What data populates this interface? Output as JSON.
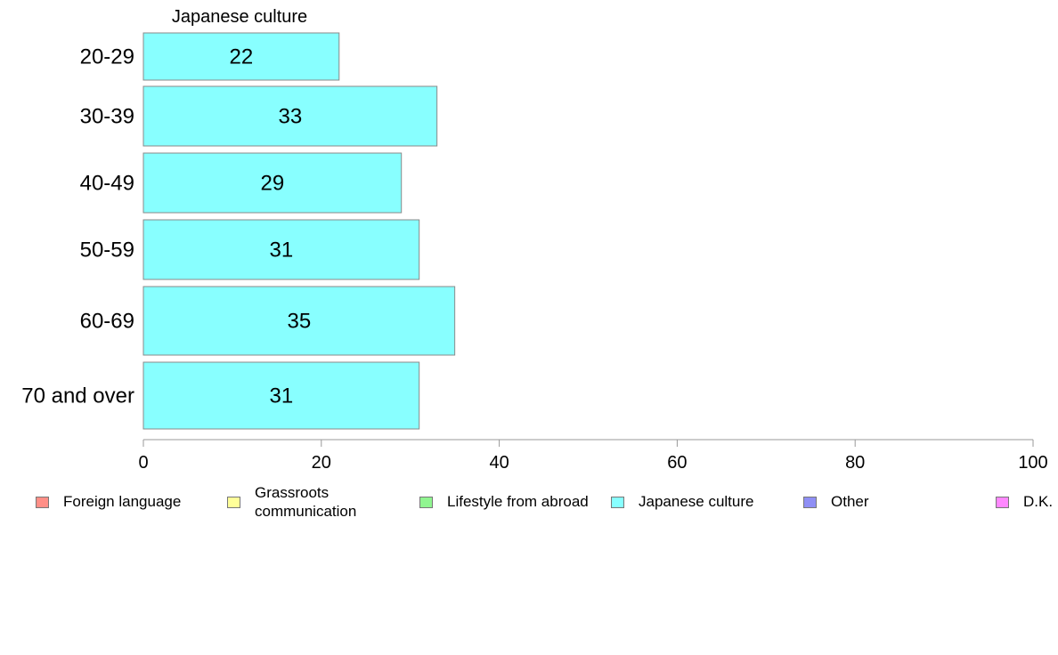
{
  "chart_data": {
    "type": "bar",
    "orientation": "horizontal",
    "title": "Japanese culture",
    "categories": [
      "20-29",
      "30-39",
      "40-49",
      "50-59",
      "60-69",
      "70 and over"
    ],
    "series": [
      {
        "name": "Japanese culture",
        "values": [
          22,
          33,
          29,
          31,
          35,
          31
        ],
        "color": "#88ffff"
      }
    ],
    "data_labels": [
      "22",
      "33",
      "29",
      "31",
      "35",
      "31"
    ],
    "xlim": [
      0,
      100
    ],
    "xticks": [
      0,
      20,
      40,
      60,
      80,
      100
    ],
    "xtick_labels": [
      "0",
      "20",
      "40",
      "60",
      "80",
      "100"
    ],
    "grid": false,
    "legend_position": "bottom"
  },
  "legend": [
    {
      "label": "Foreign language",
      "color": "#ff8f87"
    },
    {
      "label": "Grassroots\ncommunication",
      "color": "#ffff99"
    },
    {
      "label": "Lifestyle from abroad",
      "color": "#90f590"
    },
    {
      "label": "Japanese culture",
      "color": "#88ffff"
    },
    {
      "label": "Other",
      "color": "#8f8ff5"
    },
    {
      "label": "D.K.",
      "color": "#ff88ff"
    }
  ]
}
